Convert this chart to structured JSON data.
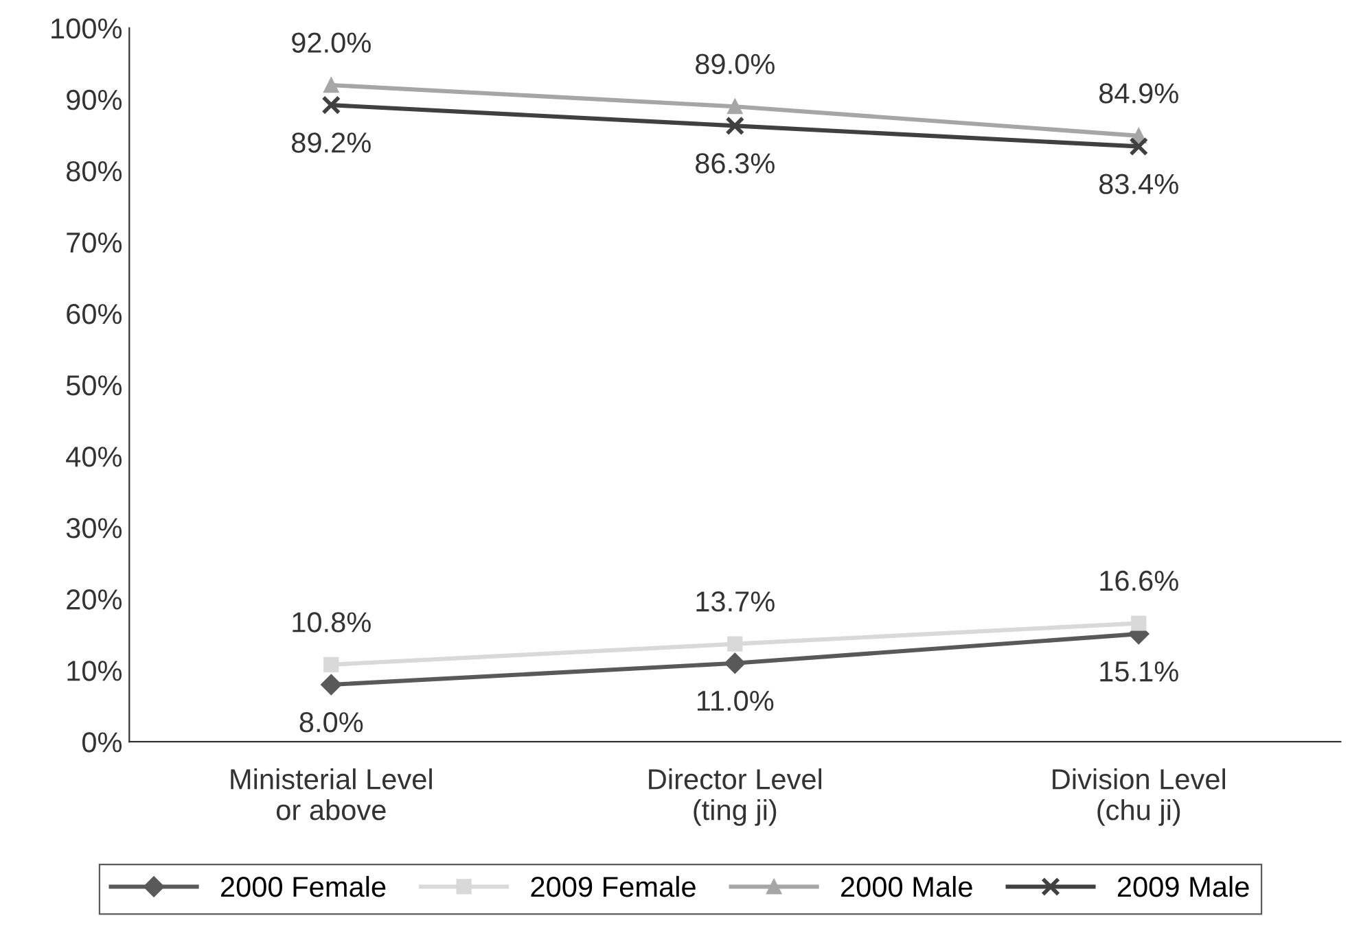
{
  "chart_data": {
    "type": "line",
    "categories": [
      "Ministerial Level\nor above",
      "Director Level\n(ting ji)",
      "Division Level\n(chu ji)"
    ],
    "series": [
      {
        "name": "2000 Female",
        "color": "#595959",
        "marker": "diamond",
        "values": [
          8.0,
          11.0,
          15.1
        ],
        "value_labels": [
          "8.0%",
          "11.0%",
          "15.1%"
        ]
      },
      {
        "name": "2009 Female",
        "color": "#d9d9d9",
        "marker": "square",
        "values": [
          10.8,
          13.7,
          16.6
        ],
        "value_labels": [
          "10.8%",
          "13.7%",
          "16.6%"
        ]
      },
      {
        "name": "2000 Male",
        "color": "#a6a6a6",
        "marker": "triangle",
        "values": [
          92.0,
          89.0,
          84.9
        ],
        "value_labels": [
          "92.0%",
          "89.0%",
          "84.9%"
        ]
      },
      {
        "name": "2009 Male",
        "color": "#404040",
        "marker": "cross",
        "values": [
          89.2,
          86.3,
          83.4
        ],
        "value_labels": [
          "89.2%",
          "86.3%",
          "83.4%"
        ]
      }
    ],
    "ylim": [
      0,
      100
    ],
    "yticks": [
      {
        "value": 0,
        "label": "0%"
      },
      {
        "value": 10,
        "label": "10%"
      },
      {
        "value": 20,
        "label": "20%"
      },
      {
        "value": 30,
        "label": "30%"
      },
      {
        "value": 40,
        "label": "40%"
      },
      {
        "value": 50,
        "label": "50%"
      },
      {
        "value": 60,
        "label": "60%"
      },
      {
        "value": 70,
        "label": "70%"
      },
      {
        "value": 80,
        "label": "80%"
      },
      {
        "value": 90,
        "label": "90%"
      },
      {
        "value": 100,
        "label": "100%"
      }
    ],
    "grid": false,
    "legend": "bottom",
    "line_style": "solid"
  }
}
